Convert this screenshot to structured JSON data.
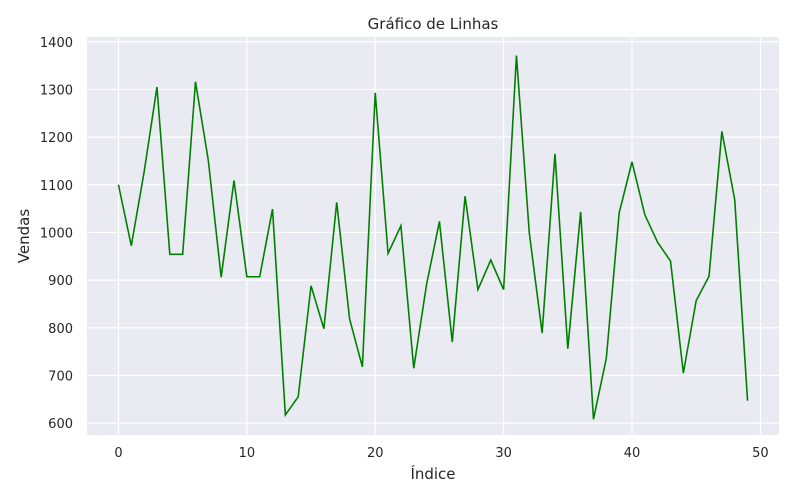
{
  "chart_data": {
    "type": "line",
    "title": "Gráfico de Linhas",
    "xlabel": "Índice",
    "ylabel": "Vendas",
    "xlim": [
      -2.45,
      51.45
    ],
    "ylim": [
      575,
      1410
    ],
    "xticks": [
      0,
      10,
      20,
      30,
      40,
      50
    ],
    "yticks": [
      600,
      700,
      800,
      900,
      1000,
      1100,
      1200,
      1300,
      1400
    ],
    "grid": true,
    "line_color": "#008000",
    "background_color": "#eaeaf2",
    "grid_color": "#ffffff",
    "series": [
      {
        "x": [
          0,
          1,
          2,
          3,
          4,
          5,
          6,
          7,
          8,
          9,
          10,
          11,
          12,
          13,
          14,
          15,
          16,
          17,
          18,
          19,
          20,
          21,
          22,
          23,
          24,
          25,
          26,
          27,
          28,
          29,
          30,
          31,
          32,
          33,
          34,
          35,
          36,
          37,
          38,
          39,
          40,
          41,
          42,
          43,
          44,
          45,
          46,
          47,
          48,
          49
        ],
        "values": [
          1100,
          972,
          1127,
          1305,
          954,
          954,
          1316,
          1151,
          906,
          1109,
          907,
          907,
          1049,
          617,
          655,
          888,
          798,
          1063,
          819,
          718,
          1293,
          956,
          1014,
          715,
          891,
          1023,
          770,
          1076,
          880,
          942,
          880,
          1371,
          999,
          789,
          1165,
          756,
          1043,
          608,
          736,
          1041,
          1148,
          1037,
          979,
          940,
          705,
          857,
          908,
          1212,
          1069,
          647
        ]
      }
    ]
  }
}
